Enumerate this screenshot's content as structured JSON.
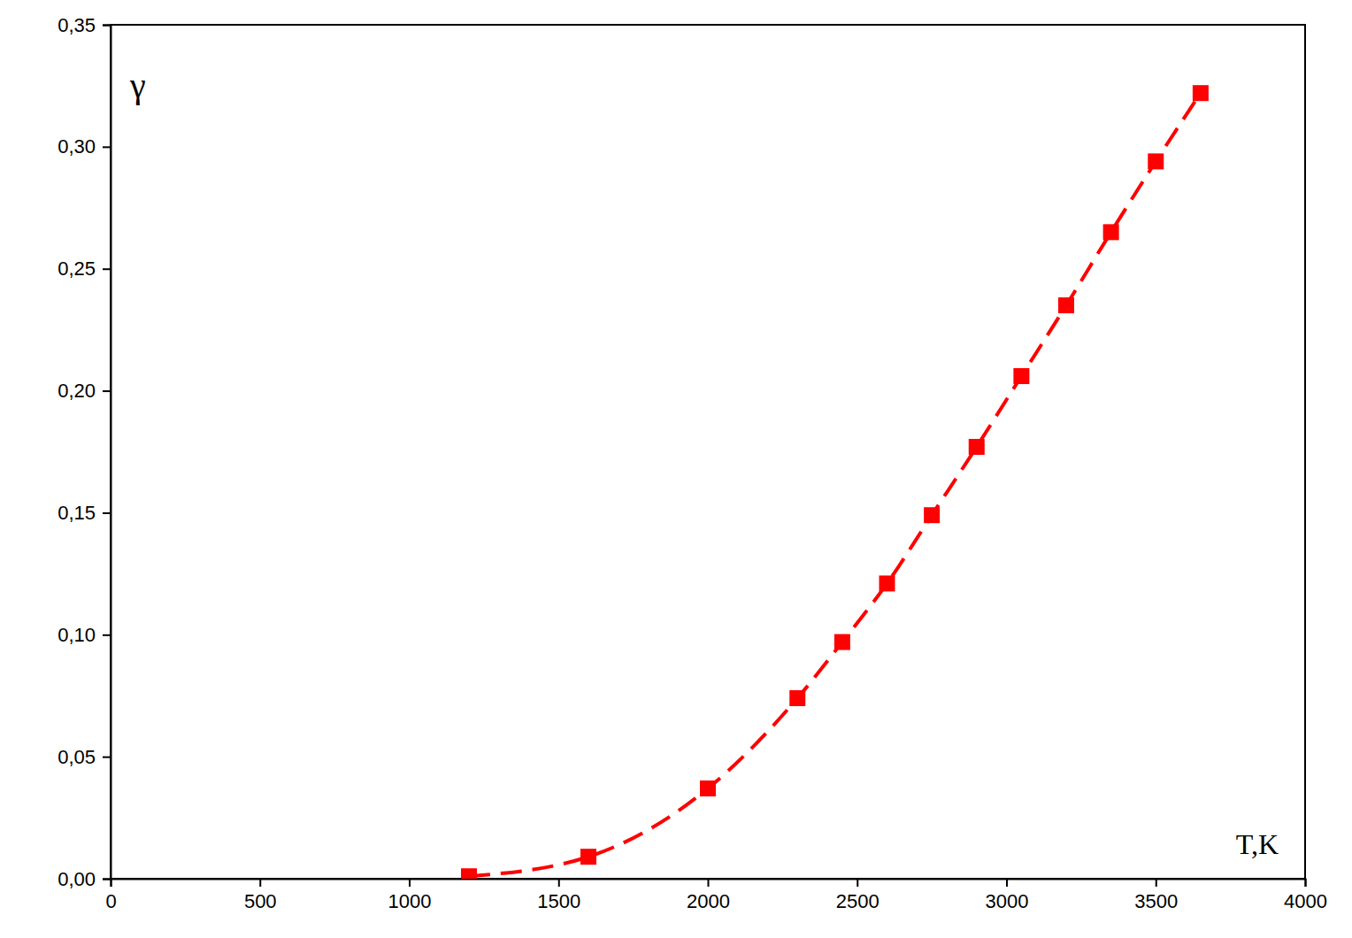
{
  "chart_data": {
    "type": "line",
    "x_label": "T,K",
    "y_label": "γ",
    "x": [
      1200,
      1600,
      2000,
      2300,
      2450,
      2600,
      2750,
      2900,
      3050,
      3200,
      3350,
      3500,
      3650
    ],
    "series": [
      {
        "color": "#ff0000",
        "marker": "square",
        "line_style": "dashed",
        "values": [
          0.001,
          0.009,
          0.037,
          0.074,
          0.097,
          0.121,
          0.149,
          0.177,
          0.206,
          0.235,
          0.265,
          0.294,
          0.322
        ]
      }
    ],
    "xlim": [
      0,
      4000
    ],
    "xticks": [
      0,
      500,
      1000,
      1500,
      2000,
      2500,
      3000,
      3500,
      4000
    ],
    "ylim": [
      0,
      0.35
    ],
    "yticks": [
      {
        "value": 0,
        "label": "0,00"
      },
      {
        "value": 0.05,
        "label": "0,05"
      },
      {
        "value": 0.1,
        "label": "0,10"
      },
      {
        "value": 0.15,
        "label": "0,15"
      },
      {
        "value": 0.2,
        "label": "0,20"
      },
      {
        "value": 0.25,
        "label": "0,25"
      },
      {
        "value": 0.3,
        "label": "0,30"
      },
      {
        "value": 0.35,
        "label": "0,35"
      }
    ],
    "grid": false
  }
}
